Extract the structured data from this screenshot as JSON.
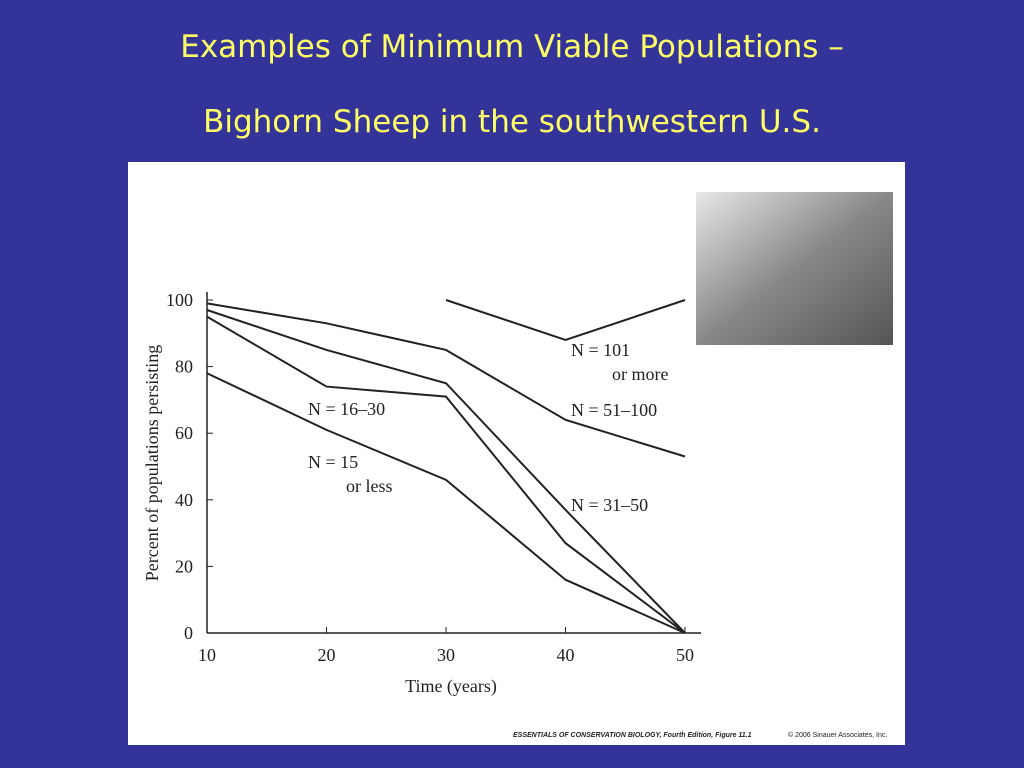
{
  "slide": {
    "title_lines": [
      "Examples of Minimum Viable Populations –",
      "Bighorn Sheep in the southwestern U.S."
    ],
    "credit": "ESSENTIALS OF CONSERVATION BIOLOGY, Fourth Edition, Figure 11.1",
    "copyright": "© 2006 Sinauer Associates, Inc."
  },
  "chart_data": {
    "type": "line",
    "x_label": "Time (years)",
    "y_label": "Percent of populations persisting",
    "x": [
      10,
      20,
      30,
      40,
      50
    ],
    "xlim": [
      10,
      50
    ],
    "xticks": [
      10,
      20,
      30,
      40,
      50
    ],
    "ylim": [
      0,
      100
    ],
    "yticks": [
      0,
      20,
      40,
      60,
      80,
      100
    ],
    "series": [
      {
        "label_lines": [
          "N = 101",
          "or more"
        ],
        "color": "#222222",
        "values": [
          100,
          null,
          100,
          88,
          100
        ]
      },
      {
        "label_lines": [
          "N = 51–100"
        ],
        "color": "#222222",
        "values": [
          99,
          93,
          85,
          64,
          53
        ]
      },
      {
        "label_lines": [
          "N = 31–50"
        ],
        "color": "#222222",
        "values": [
          97,
          85,
          75,
          37,
          0
        ]
      },
      {
        "label_lines": [
          "N = 16–30"
        ],
        "color": "#222222",
        "values": [
          95,
          74,
          71,
          27,
          0
        ]
      },
      {
        "label_lines": [
          "N = 15",
          "or less"
        ],
        "color": "#222222",
        "values": [
          78,
          61,
          46,
          16,
          0
        ]
      }
    ]
  }
}
